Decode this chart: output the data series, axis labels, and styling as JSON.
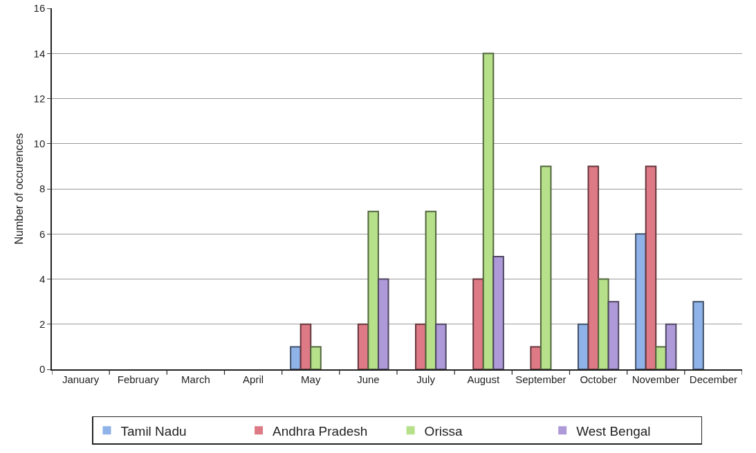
{
  "chart_data": {
    "type": "bar",
    "ylabel": "Number of occurences",
    "categories": [
      "January",
      "February",
      "March",
      "April",
      "May",
      "June",
      "July",
      "August",
      "September",
      "October",
      "November",
      "December"
    ],
    "series": [
      {
        "name": "Tamil Nadu",
        "color": "#8fb2e8",
        "values": [
          0,
          0,
          0,
          0,
          1,
          0,
          0,
          0,
          0,
          2,
          6,
          3
        ]
      },
      {
        "name": "Andhra Pradesh",
        "color": "#de7a86",
        "values": [
          0,
          0,
          0,
          0,
          2,
          2,
          2,
          4,
          1,
          9,
          9,
          0
        ]
      },
      {
        "name": "Orissa",
        "color": "#b6e08a",
        "values": [
          0,
          0,
          0,
          0,
          1,
          7,
          7,
          14,
          9,
          4,
          1,
          0
        ]
      },
      {
        "name": "West Bengal",
        "color": "#ae9ad8",
        "values": [
          0,
          0,
          0,
          0,
          0,
          4,
          2,
          5,
          0,
          3,
          2,
          0
        ]
      }
    ],
    "ylim": [
      0,
      16
    ],
    "yticks": [
      0,
      2,
      4,
      6,
      8,
      10,
      12,
      14,
      16
    ],
    "grid": "y",
    "legend": "bottom"
  }
}
